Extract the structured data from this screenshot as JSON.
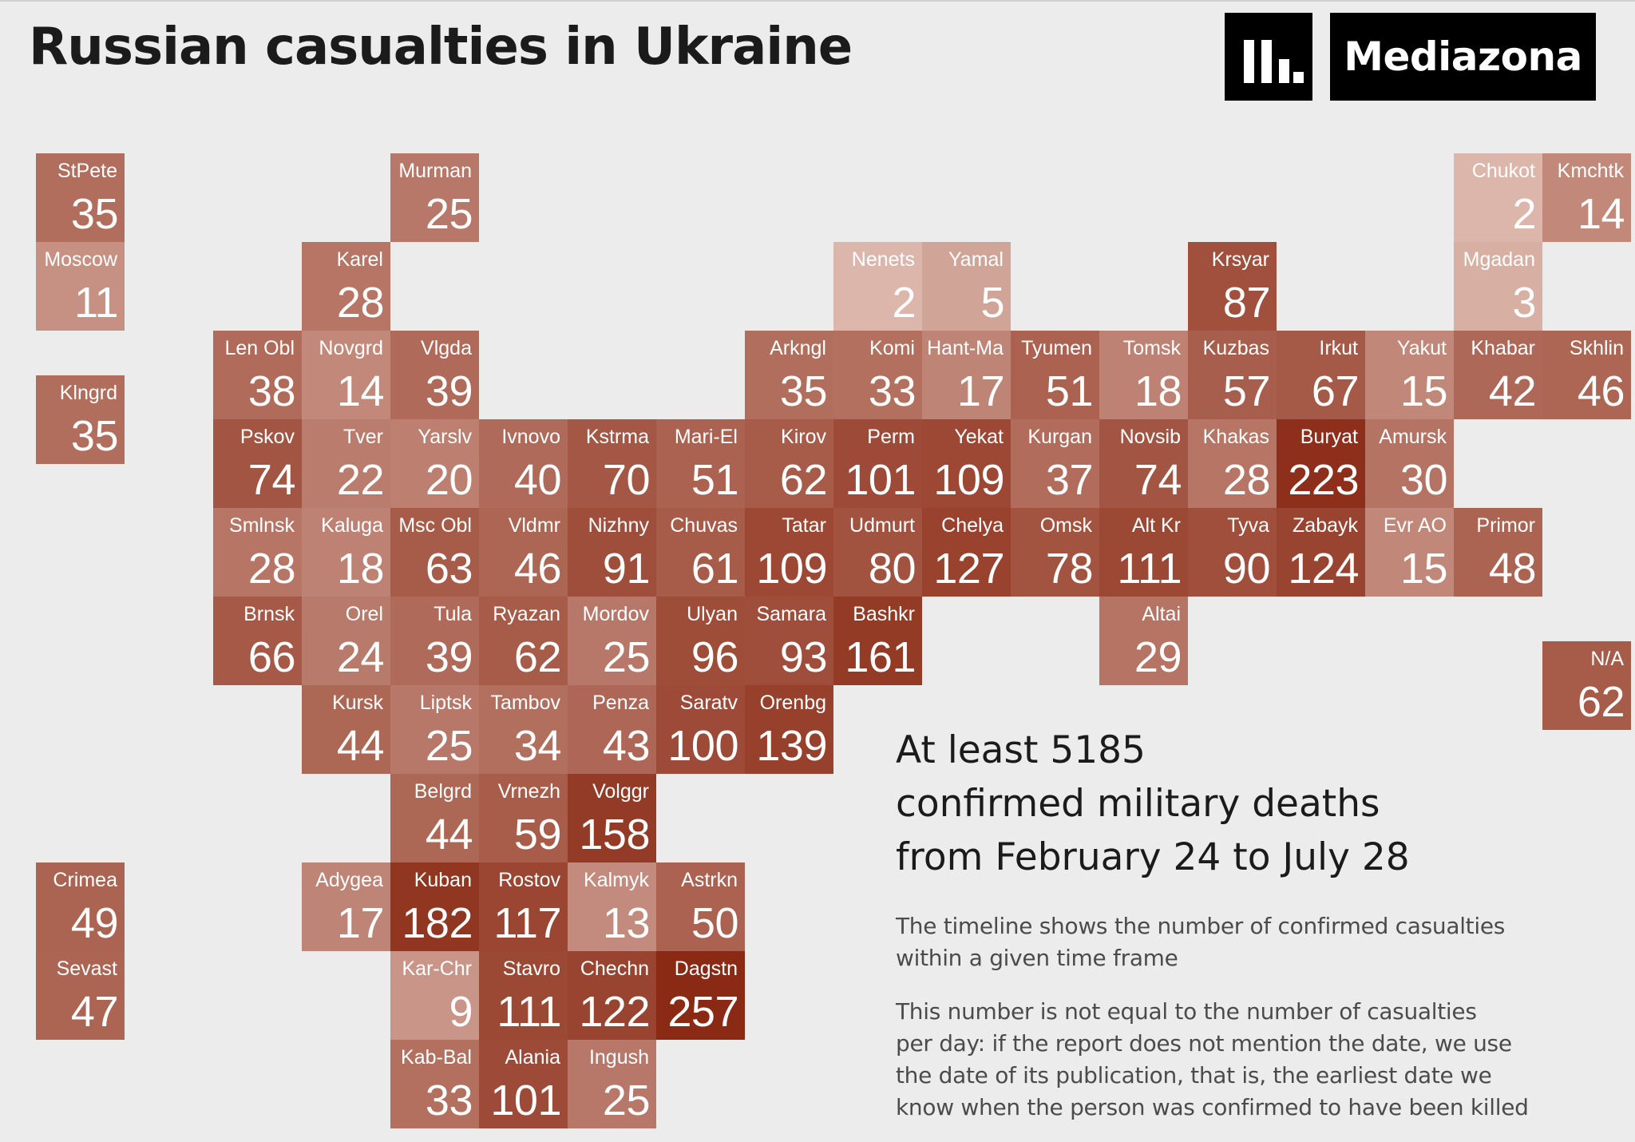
{
  "header": {
    "title": "Russian casualties in Ukraine",
    "brand": "Mediazona"
  },
  "colors": {
    "background": "#ececec",
    "scale_min": "#e9cfc6",
    "scale_max": "#8a2a14",
    "tile_text": "#ffffff"
  },
  "icons": {
    "logo": "mediazona-bars-logo"
  },
  "summary": {
    "headline_lines": [
      "At least 5185",
      "confirmed military deaths",
      "from February 24 to July 28"
    ],
    "note1_lines": [
      "The timeline shows the number of confirmed casualties",
      "within a given time frame"
    ],
    "note2_lines": [
      "This number is not equal to the number of casualties",
      "per day: if the report does not mention the date, we use",
      "the date of its publication, that is, the earliest date we",
      "know when the person was confirmed to have been killed"
    ]
  },
  "chart_data": {
    "type": "heatmap",
    "title": "Russian casualties in Ukraine",
    "color_scale": "light rose (low) to dark brown-red (high)",
    "total": 5185,
    "cells": [
      {
        "label": "StPete",
        "value": 35,
        "col": 0,
        "row": 0
      },
      {
        "label": "Murman",
        "value": 25,
        "col": 4,
        "row": 0
      },
      {
        "label": "Chukot",
        "value": 2,
        "col": 16,
        "row": 0
      },
      {
        "label": "Kmchtk",
        "value": 14,
        "col": 17,
        "row": 0
      },
      {
        "label": "Moscow",
        "value": 11,
        "col": 0,
        "row": 1
      },
      {
        "label": "Karel",
        "value": 28,
        "col": 3,
        "row": 1
      },
      {
        "label": "Nenets",
        "value": 2,
        "col": 9,
        "row": 1
      },
      {
        "label": "Yamal",
        "value": 5,
        "col": 10,
        "row": 1
      },
      {
        "label": "Krsyar",
        "value": 87,
        "col": 13,
        "row": 1
      },
      {
        "label": "Mgadan",
        "value": 3,
        "col": 16,
        "row": 1
      },
      {
        "label": "Len Obl",
        "value": 38,
        "col": 2,
        "row": 2
      },
      {
        "label": "Novgrd",
        "value": 14,
        "col": 3,
        "row": 2
      },
      {
        "label": "Vlgda",
        "value": 39,
        "col": 4,
        "row": 2
      },
      {
        "label": "Arkngl",
        "value": 35,
        "col": 8,
        "row": 2
      },
      {
        "label": "Komi",
        "value": 33,
        "col": 9,
        "row": 2
      },
      {
        "label": "Hant-Ma",
        "value": 17,
        "col": 10,
        "row": 2
      },
      {
        "label": "Tyumen",
        "value": 51,
        "col": 11,
        "row": 2
      },
      {
        "label": "Tomsk",
        "value": 18,
        "col": 12,
        "row": 2
      },
      {
        "label": "Kuzbas",
        "value": 57,
        "col": 13,
        "row": 2
      },
      {
        "label": "Irkut",
        "value": 67,
        "col": 14,
        "row": 2
      },
      {
        "label": "Yakut",
        "value": 15,
        "col": 15,
        "row": 2
      },
      {
        "label": "Khabar",
        "value": 42,
        "col": 16,
        "row": 2
      },
      {
        "label": "Skhlin",
        "value": 46,
        "col": 17,
        "row": 2
      },
      {
        "label": "Klngrd",
        "value": 35,
        "col": 0,
        "row": 2.5
      },
      {
        "label": "Pskov",
        "value": 74,
        "col": 2,
        "row": 3
      },
      {
        "label": "Tver",
        "value": 22,
        "col": 3,
        "row": 3
      },
      {
        "label": "Yarslv",
        "value": 20,
        "col": 4,
        "row": 3
      },
      {
        "label": "Ivnovo",
        "value": 40,
        "col": 5,
        "row": 3
      },
      {
        "label": "Kstrma",
        "value": 70,
        "col": 6,
        "row": 3
      },
      {
        "label": "Mari-El",
        "value": 51,
        "col": 7,
        "row": 3
      },
      {
        "label": "Kirov",
        "value": 62,
        "col": 8,
        "row": 3
      },
      {
        "label": "Perm",
        "value": 101,
        "col": 9,
        "row": 3
      },
      {
        "label": "Yekat",
        "value": 109,
        "col": 10,
        "row": 3
      },
      {
        "label": "Kurgan",
        "value": 37,
        "col": 11,
        "row": 3
      },
      {
        "label": "Novsib",
        "value": 74,
        "col": 12,
        "row": 3
      },
      {
        "label": "Khakas",
        "value": 28,
        "col": 13,
        "row": 3
      },
      {
        "label": "Buryat",
        "value": 223,
        "col": 14,
        "row": 3
      },
      {
        "label": "Amursk",
        "value": 30,
        "col": 15,
        "row": 3
      },
      {
        "label": "Smlnsk",
        "value": 28,
        "col": 2,
        "row": 4
      },
      {
        "label": "Kaluga",
        "value": 18,
        "col": 3,
        "row": 4
      },
      {
        "label": "Msc Obl",
        "value": 63,
        "col": 4,
        "row": 4
      },
      {
        "label": "Vldmr",
        "value": 46,
        "col": 5,
        "row": 4
      },
      {
        "label": "Nizhny",
        "value": 91,
        "col": 6,
        "row": 4
      },
      {
        "label": "Chuvas",
        "value": 61,
        "col": 7,
        "row": 4
      },
      {
        "label": "Tatar",
        "value": 109,
        "col": 8,
        "row": 4
      },
      {
        "label": "Udmurt",
        "value": 80,
        "col": 9,
        "row": 4
      },
      {
        "label": "Chelya",
        "value": 127,
        "col": 10,
        "row": 4
      },
      {
        "label": "Omsk",
        "value": 78,
        "col": 11,
        "row": 4
      },
      {
        "label": "Alt Kr",
        "value": 111,
        "col": 12,
        "row": 4
      },
      {
        "label": "Tyva",
        "value": 90,
        "col": 13,
        "row": 4
      },
      {
        "label": "Zabayk",
        "value": 124,
        "col": 14,
        "row": 4
      },
      {
        "label": "Evr AO",
        "value": 15,
        "col": 15,
        "row": 4
      },
      {
        "label": "Primor",
        "value": 48,
        "col": 16,
        "row": 4
      },
      {
        "label": "Brnsk",
        "value": 66,
        "col": 2,
        "row": 5
      },
      {
        "label": "Orel",
        "value": 24,
        "col": 3,
        "row": 5
      },
      {
        "label": "Tula",
        "value": 39,
        "col": 4,
        "row": 5
      },
      {
        "label": "Ryazan",
        "value": 62,
        "col": 5,
        "row": 5
      },
      {
        "label": "Mordov",
        "value": 25,
        "col": 6,
        "row": 5
      },
      {
        "label": "Ulyan",
        "value": 96,
        "col": 7,
        "row": 5
      },
      {
        "label": "Samara",
        "value": 93,
        "col": 8,
        "row": 5
      },
      {
        "label": "Bashkr",
        "value": 161,
        "col": 9,
        "row": 5
      },
      {
        "label": "Altai",
        "value": 29,
        "col": 12,
        "row": 5
      },
      {
        "label": "N/A",
        "value": 62,
        "col": 17,
        "row": 5.5
      },
      {
        "label": "Kursk",
        "value": 44,
        "col": 3,
        "row": 6
      },
      {
        "label": "Liptsk",
        "value": 25,
        "col": 4,
        "row": 6
      },
      {
        "label": "Tambov",
        "value": 34,
        "col": 5,
        "row": 6
      },
      {
        "label": "Penza",
        "value": 43,
        "col": 6,
        "row": 6
      },
      {
        "label": "Saratv",
        "value": 100,
        "col": 7,
        "row": 6
      },
      {
        "label": "Orenbg",
        "value": 139,
        "col": 8,
        "row": 6
      },
      {
        "label": "Belgrd",
        "value": 44,
        "col": 4,
        "row": 7
      },
      {
        "label": "Vrnezh",
        "value": 59,
        "col": 5,
        "row": 7
      },
      {
        "label": "Volggr",
        "value": 158,
        "col": 6,
        "row": 7
      },
      {
        "label": "Crimea",
        "value": 49,
        "col": 0,
        "row": 8
      },
      {
        "label": "Adygea",
        "value": 17,
        "col": 3,
        "row": 8
      },
      {
        "label": "Kuban",
        "value": 182,
        "col": 4,
        "row": 8
      },
      {
        "label": "Rostov",
        "value": 117,
        "col": 5,
        "row": 8
      },
      {
        "label": "Kalmyk",
        "value": 13,
        "col": 6,
        "row": 8
      },
      {
        "label": "Astrkn",
        "value": 50,
        "col": 7,
        "row": 8
      },
      {
        "label": "Sevast",
        "value": 47,
        "col": 0,
        "row": 9
      },
      {
        "label": "Kar-Chr",
        "value": 9,
        "col": 4,
        "row": 9
      },
      {
        "label": "Stavro",
        "value": 111,
        "col": 5,
        "row": 9
      },
      {
        "label": "Chechn",
        "value": 122,
        "col": 6,
        "row": 9
      },
      {
        "label": "Dagstn",
        "value": 257,
        "col": 7,
        "row": 9
      },
      {
        "label": "Kab-Bal",
        "value": 33,
        "col": 4,
        "row": 10
      },
      {
        "label": "Alania",
        "value": 101,
        "col": 5,
        "row": 10
      },
      {
        "label": "Ingush",
        "value": 25,
        "col": 6,
        "row": 10
      }
    ]
  }
}
